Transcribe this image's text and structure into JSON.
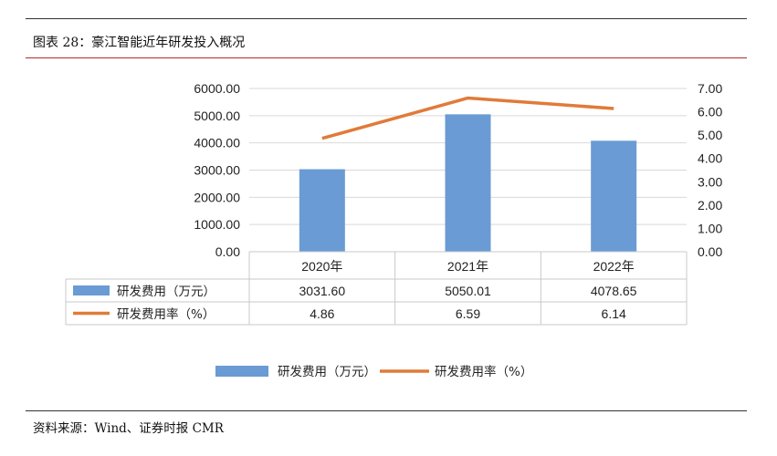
{
  "figure": {
    "title": "图表 28：豪江智能近年研发投入概况",
    "source": "资料来源：Wind、证券时报 CMR"
  },
  "chart_data": {
    "type": "bar",
    "categories": [
      "2020年",
      "2021年",
      "2022年"
    ],
    "series": [
      {
        "name": "研发费用（万元）",
        "type": "bar",
        "axis": "left",
        "color": "#6a9bd4",
        "values": [
          3031.6,
          5050.01,
          4078.65
        ],
        "labels": [
          "3031.60",
          "5050.01",
          "4078.65"
        ]
      },
      {
        "name": "研发费用率（%）",
        "type": "line",
        "axis": "right",
        "color": "#e07b39",
        "values": [
          4.86,
          6.59,
          6.14
        ],
        "labels": [
          "4.86",
          "6.59",
          "6.14"
        ]
      }
    ],
    "y_left": {
      "min": 0,
      "max": 6000,
      "ticks": [
        "0.00",
        "1000.00",
        "2000.00",
        "3000.00",
        "4000.00",
        "5000.00",
        "6000.00"
      ]
    },
    "y_right": {
      "min": 0,
      "max": 7,
      "ticks": [
        "0.00",
        "1.00",
        "2.00",
        "3.00",
        "4.00",
        "5.00",
        "6.00",
        "7.00"
      ]
    },
    "grid": true,
    "legend": "bottom",
    "data_table": true
  }
}
